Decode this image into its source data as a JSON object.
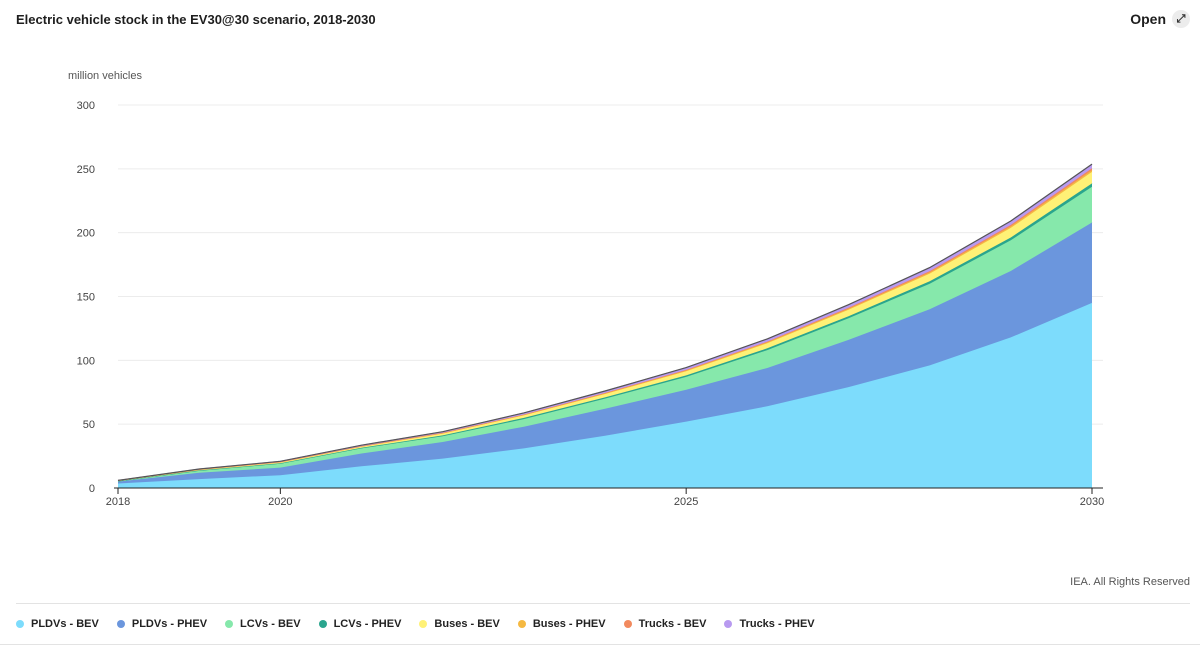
{
  "header": {
    "title": "Electric vehicle stock in the EV30@30 scenario, 2018-2030",
    "open_label": "Open",
    "open_icon": "expand-arrow-icon"
  },
  "footer": {
    "credit": "IEA. All Rights Reserved"
  },
  "chart_data": {
    "type": "area",
    "stacked": true,
    "title": "Electric vehicle stock in the EV30@30 scenario, 2018-2030",
    "ylabel": "million vehicles",
    "xlabel": "",
    "ylim": [
      0,
      300
    ],
    "xlim": [
      2018,
      2030
    ],
    "yticks": [
      0,
      50,
      100,
      150,
      200,
      250,
      300
    ],
    "xticks": [
      2018,
      2020,
      2025,
      2030
    ],
    "grid": true,
    "legend_position": "bottom",
    "x": [
      2018,
      2019,
      2020,
      2021,
      2022,
      2023,
      2024,
      2025,
      2026,
      2027,
      2028,
      2029,
      2030
    ],
    "series": [
      {
        "name": "PLDVs - BEV",
        "color": "#7ddcfc",
        "values": [
          3.5,
          7,
          10,
          17,
          23,
          31,
          41,
          52,
          64,
          79,
          96,
          118,
          145
        ]
      },
      {
        "name": "PLDVs - PHEV",
        "color": "#6b96dd",
        "values": [
          1.5,
          5,
          6,
          10,
          13,
          17,
          21,
          25,
          30,
          37,
          44,
          52,
          63
        ]
      },
      {
        "name": "LCVs - BEV",
        "color": "#86e8ab",
        "values": [
          0.3,
          1.5,
          3,
          4,
          4.5,
          6,
          8,
          10,
          14,
          17,
          20,
          24,
          28
        ]
      },
      {
        "name": "LCVs - PHEV",
        "color": "#2aa58e",
        "values": [
          0.1,
          0.3,
          0.4,
          0.5,
          0.7,
          0.9,
          1.0,
          1.2,
          1.4,
          1.6,
          1.9,
          2.2,
          2.6
        ]
      },
      {
        "name": "Buses - BEV",
        "color": "#fff176",
        "values": [
          0.4,
          0.6,
          0.8,
          1.0,
          1.5,
          2.0,
          2.6,
          3.2,
          4.0,
          5.0,
          6.0,
          7.5,
          9.0
        ]
      },
      {
        "name": "Buses - PHEV",
        "color": "#f5b942",
        "values": [
          0.05,
          0.1,
          0.15,
          0.2,
          0.3,
          0.4,
          0.5,
          0.6,
          0.7,
          0.8,
          1.0,
          1.2,
          1.4
        ]
      },
      {
        "name": "Trucks - BEV",
        "color": "#f28a5e",
        "values": [
          0.02,
          0.05,
          0.1,
          0.15,
          0.2,
          0.3,
          0.4,
          0.5,
          0.6,
          0.8,
          1.0,
          1.2,
          1.4
        ]
      },
      {
        "name": "Trucks - PHEV",
        "color": "#b89af0",
        "values": [
          0.1,
          0.3,
          0.5,
          0.7,
          0.9,
          1.2,
          1.5,
          1.8,
          2.1,
          2.4,
          2.7,
          3.0,
          3.3
        ]
      }
    ]
  }
}
